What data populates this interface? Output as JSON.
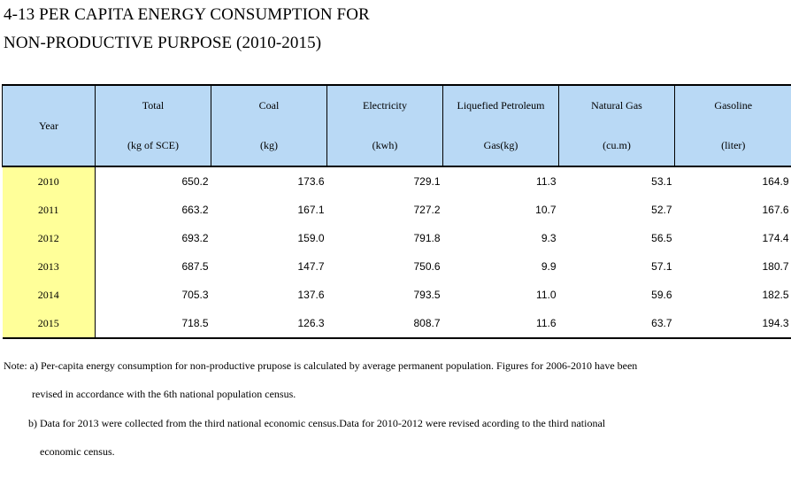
{
  "title": {
    "line1": "4-13  PER CAPITA ENERGY CONSUMPTION FOR",
    "line2": "NON-PRODUCTIVE PURPOSE (2010-2015)"
  },
  "table": {
    "year_header": "Year",
    "columns": [
      {
        "name": "Total",
        "unit": "(kg of SCE)"
      },
      {
        "name": "Coal",
        "unit": "(kg)"
      },
      {
        "name": "Electricity",
        "unit": "(kwh)"
      },
      {
        "name": "Liquefied Petroleum",
        "unit": "Gas(kg)"
      },
      {
        "name": "Natural Gas",
        "unit": "(cu.m)"
      },
      {
        "name": "Gasoline",
        "unit": "(liter)"
      }
    ],
    "rows": [
      {
        "year": "2010",
        "values": [
          "650.2",
          "173.6",
          "729.1",
          "11.3",
          "53.1",
          "164.9"
        ]
      },
      {
        "year": "2011",
        "values": [
          "663.2",
          "167.1",
          "727.2",
          "10.7",
          "52.7",
          "167.6"
        ]
      },
      {
        "year": "2012",
        "values": [
          "693.2",
          "159.0",
          "791.8",
          "9.3",
          "56.5",
          "174.4"
        ]
      },
      {
        "year": "2013",
        "values": [
          "687.5",
          "147.7",
          "750.6",
          "9.9",
          "57.1",
          "180.7"
        ]
      },
      {
        "year": "2014",
        "values": [
          "705.3",
          "137.6",
          "793.5",
          "11.0",
          "59.6",
          "182.5"
        ]
      },
      {
        "year": "2015",
        "values": [
          "718.5",
          "126.3",
          "808.7",
          "11.6",
          "63.7",
          "194.3"
        ]
      }
    ]
  },
  "notes": {
    "line1": "Note: a) Per-capita energy consumption for non-productive prupose is calculated by average permanent population. Figures for 2006-2010 have been",
    "line2": "revised in accordance with the 6th national population census.",
    "line3": "b) Data for 2013 were collected from the third  national economic census.Data for 2010-2012 were revised acording to the third national",
    "line4": "economic census."
  }
}
